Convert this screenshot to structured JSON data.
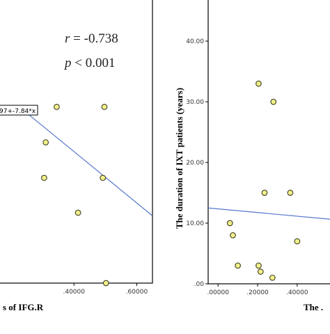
{
  "colors": {
    "point_fill": "#f2f08c",
    "point_stroke": "#3d3d1e",
    "fit_line": "#5577cc",
    "frame": "#000000"
  },
  "chart_data": [
    {
      "type": "scatter",
      "title": "",
      "xlabel": "s of IFG.R",
      "ylabel": "",
      "xlim": [
        0.16,
        0.65
      ],
      "ylim": [
        0,
        40
      ],
      "x_tick_labels": [
        ".40000",
        ".60000"
      ],
      "y_tick_labels": [],
      "points": [
        {
          "x": 0.345,
          "y": 28.8
        },
        {
          "x": 0.31,
          "y": 23.0
        },
        {
          "x": 0.305,
          "y": 17.2
        },
        {
          "x": 0.497,
          "y": 28.8
        },
        {
          "x": 0.492,
          "y": 17.2
        },
        {
          "x": 0.413,
          "y": 11.5
        },
        {
          "x": 0.502,
          "y": 0.0
        }
      ],
      "fit_line": {
        "x": [
          0.245,
          0.65
        ],
        "y": [
          28.0,
          11.0
        ]
      },
      "equation_label": "97+-7.84*x",
      "annotations": [
        "r = -0.738",
        "p < 0.001"
      ],
      "grid": false
    },
    {
      "type": "scatter",
      "title": "",
      "xlabel": "The .",
      "ylabel": "The duration of IXT patients (years)",
      "xlim": [
        -0.05,
        0.58
      ],
      "ylim": [
        0,
        40
      ],
      "x_tick_labels": [
        ".00000",
        ".20000",
        ".40000"
      ],
      "y_tick_labels": [
        ".00",
        "10.00",
        "20.00",
        "30.00",
        "40.00"
      ],
      "points": [
        {
          "x": 0.205,
          "y": 33.0
        },
        {
          "x": 0.28,
          "y": 30.0
        },
        {
          "x": 0.235,
          "y": 15.0
        },
        {
          "x": 0.365,
          "y": 15.0
        },
        {
          "x": 0.06,
          "y": 10.0
        },
        {
          "x": 0.075,
          "y": 8.0
        },
        {
          "x": 0.4,
          "y": 7.0
        },
        {
          "x": 0.1,
          "y": 3.0
        },
        {
          "x": 0.205,
          "y": 3.0
        },
        {
          "x": 0.215,
          "y": 2.0
        },
        {
          "x": 0.275,
          "y": 1.0
        }
      ],
      "fit_line": {
        "x": [
          -0.05,
          0.58
        ],
        "y": [
          12.5,
          10.6
        ]
      },
      "grid": false
    }
  ]
}
